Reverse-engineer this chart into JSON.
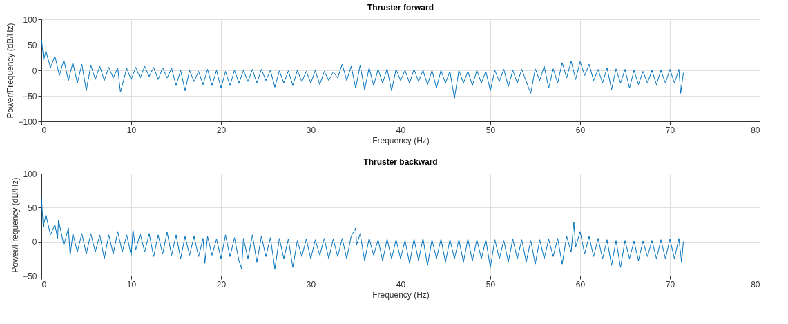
{
  "chart_data": [
    {
      "type": "line",
      "title": "Thruster forward",
      "xlabel": "Frequency (Hz)",
      "ylabel": "Power/Frequency (dB/Hz)",
      "xlim": [
        0,
        80
      ],
      "xticks": [
        0,
        10,
        20,
        30,
        40,
        50,
        60,
        70,
        80
      ],
      "ylim": [
        -100,
        100
      ],
      "yticks": [
        -100,
        -50,
        0,
        50,
        100
      ],
      "grid": true,
      "line_style": "solid",
      "x": [
        0,
        0.25,
        0.5,
        1,
        1.5,
        2,
        2.5,
        3,
        3.5,
        4,
        4.5,
        5,
        5.5,
        6,
        6.5,
        7,
        7.5,
        8,
        8.5,
        8.8,
        9.5,
        10,
        10.5,
        11,
        11.5,
        12,
        12.5,
        13,
        13.5,
        14,
        14.5,
        15,
        15.5,
        16,
        16.5,
        17,
        17.5,
        18,
        18.5,
        19,
        19.5,
        20,
        20.5,
        21,
        21.5,
        22,
        22.5,
        23,
        23.5,
        24,
        24.5,
        25,
        25.5,
        26,
        26.5,
        27,
        27.5,
        28,
        28.5,
        29,
        29.5,
        30,
        30.5,
        31,
        31.5,
        32,
        32.5,
        33,
        33.5,
        34,
        34.5,
        35,
        35.5,
        36,
        36.5,
        37,
        37.5,
        38,
        38.5,
        39,
        39.5,
        40,
        40.5,
        41,
        41.5,
        42,
        42.5,
        43,
        43.5,
        44,
        44.5,
        45,
        45.5,
        46,
        46.5,
        47,
        47.5,
        48,
        48.5,
        49,
        49.5,
        50,
        50.5,
        51,
        51.5,
        52,
        52.5,
        53,
        53.5,
        54,
        54.5,
        55,
        55.5,
        56,
        56.5,
        57,
        57.5,
        58,
        58.5,
        59,
        59.5,
        60,
        60.5,
        61,
        61.5,
        62,
        62.5,
        63,
        63.5,
        64,
        64.5,
        65,
        65.5,
        66,
        66.5,
        67,
        67.5,
        68,
        68.5,
        69,
        69.5,
        70,
        70.5,
        71,
        71.2,
        71.5
      ],
      "series": [
        {
          "color": "#0072bd",
          "values": [
            62,
            20,
            38,
            5,
            28,
            -10,
            20,
            -20,
            15,
            -25,
            12,
            -40,
            10,
            -18,
            8,
            -20,
            6,
            -15,
            5,
            -43,
            4,
            -18,
            6,
            -15,
            8,
            -12,
            6,
            -18,
            5,
            -15,
            4,
            -30,
            0,
            -40,
            0,
            -22,
            -2,
            -28,
            2,
            -30,
            0,
            -35,
            -2,
            -30,
            0,
            -25,
            0,
            -22,
            2,
            -25,
            2,
            -20,
            0,
            -33,
            -1,
            -25,
            -1,
            -30,
            0,
            -22,
            -2,
            -25,
            0,
            -28,
            -2,
            -20,
            -3,
            -15,
            12,
            -20,
            8,
            -35,
            10,
            -38,
            5,
            -30,
            2,
            -25,
            3,
            -40,
            2,
            -20,
            0,
            -25,
            2,
            -22,
            0,
            -28,
            0,
            -35,
            0,
            -25,
            -2,
            -55,
            0,
            -25,
            -2,
            -30,
            0,
            -25,
            -2,
            -40,
            0,
            -22,
            2,
            -32,
            0,
            -25,
            2,
            -22,
            -45,
            3,
            -20,
            8,
            -35,
            3,
            -25,
            15,
            -15,
            18,
            -18,
            17,
            -10,
            12,
            -20,
            2,
            -25,
            5,
            -38,
            3,
            -25,
            2,
            -35,
            0,
            -28,
            -2,
            -25,
            0,
            -28,
            0,
            -25,
            2,
            -25,
            2,
            -45,
            -5
          ]
        }
      ]
    },
    {
      "type": "line",
      "title": "Thruster backward",
      "xlabel": "Frequency (Hz)",
      "ylabel": "Power/Frequency (dB/Hz)",
      "xlim": [
        0,
        80
      ],
      "xticks": [
        0,
        10,
        20,
        30,
        40,
        50,
        60,
        70,
        80
      ],
      "ylim": [
        -50,
        100
      ],
      "yticks": [
        -50,
        0,
        50,
        100
      ],
      "grid": true,
      "line_style": "solid",
      "x": [
        0,
        0.2,
        0.5,
        1,
        1.5,
        1.8,
        1.9,
        2.5,
        3,
        3.2,
        3.5,
        4,
        4.5,
        5,
        5.5,
        6,
        6.5,
        7,
        7.5,
        8,
        8.5,
        9,
        9.5,
        10,
        10.2,
        10.5,
        11,
        11.5,
        12,
        12.5,
        13,
        13.5,
        14,
        14.5,
        15,
        15.5,
        16,
        16.5,
        17,
        17.5,
        18,
        18.2,
        18.5,
        19,
        19.5,
        20,
        20.5,
        21,
        21.5,
        22,
        22.3,
        22.5,
        23,
        23.5,
        24,
        24.5,
        25,
        25.5,
        26,
        26.5,
        27,
        27.5,
        28,
        28.5,
        29,
        29.5,
        30,
        30.5,
        31,
        31.5,
        32,
        32.5,
        33,
        33.5,
        34,
        34.5,
        35,
        35.1,
        35.5,
        36,
        36.5,
        37,
        37.5,
        38,
        38.5,
        39,
        39.5,
        40,
        40.5,
        41,
        41.5,
        42,
        42.5,
        43,
        43.5,
        44,
        44.5,
        45,
        45.5,
        46,
        46.5,
        47,
        47.5,
        48,
        48.5,
        49,
        49.5,
        50,
        50.5,
        51,
        51.5,
        52,
        52.5,
        53,
        53.5,
        54,
        54.5,
        55,
        55.5,
        56,
        56.5,
        57,
        57.5,
        58,
        58.5,
        59,
        59.3,
        59.5,
        60,
        60.5,
        61,
        61.5,
        62,
        62.5,
        63,
        63.5,
        64,
        64.5,
        65,
        65.5,
        66,
        66.5,
        67,
        67.5,
        68,
        68.5,
        69,
        69.5,
        70,
        70.5,
        71,
        71.3,
        71.5
      ],
      "series": [
        {
          "color": "#0072bd",
          "values": [
            65,
            22,
            40,
            10,
            25,
            5,
            32,
            -5,
            20,
            -20,
            12,
            -15,
            12,
            -18,
            12,
            -15,
            10,
            -25,
            10,
            -18,
            15,
            -15,
            10,
            -20,
            18,
            -12,
            12,
            -15,
            12,
            -22,
            10,
            -18,
            14,
            -20,
            10,
            -25,
            8,
            -20,
            8,
            -22,
            5,
            -32,
            8,
            -20,
            4,
            -25,
            10,
            -22,
            6,
            -28,
            -40,
            5,
            -25,
            10,
            -30,
            8,
            -22,
            6,
            -40,
            5,
            -25,
            4,
            -38,
            2,
            -22,
            4,
            -25,
            3,
            -20,
            5,
            -25,
            4,
            -22,
            5,
            -25,
            8,
            20,
            -5,
            12,
            -28,
            5,
            -20,
            3,
            -28,
            4,
            -25,
            3,
            -25,
            2,
            -32,
            4,
            -28,
            5,
            -35,
            3,
            -25,
            4,
            -30,
            3,
            -25,
            3,
            -30,
            4,
            -28,
            3,
            -25,
            3,
            -38,
            3,
            -25,
            2,
            -30,
            4,
            -25,
            3,
            -30,
            2,
            -33,
            3,
            -25,
            4,
            -22,
            5,
            -33,
            8,
            -15,
            29,
            -8,
            15,
            -18,
            8,
            -22,
            5,
            -25,
            3,
            -35,
            2,
            -38,
            2,
            -25,
            1,
            -28,
            1,
            -22,
            2,
            -25,
            3,
            -25,
            4,
            -25,
            5,
            -30,
            0
          ]
        }
      ]
    }
  ]
}
